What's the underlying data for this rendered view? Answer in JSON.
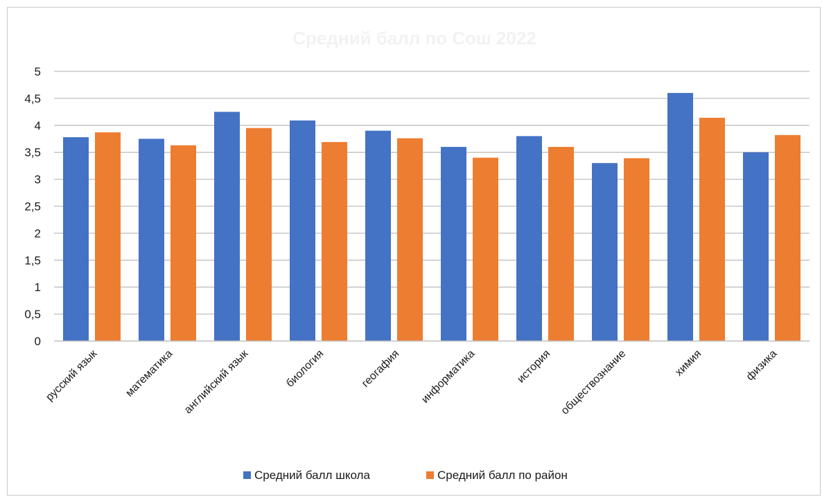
{
  "chart_data": {
    "type": "bar",
    "title": "Средний балл по Сош 2022",
    "xlabel": "",
    "ylabel": "",
    "ylim": [
      0,
      5
    ],
    "y_ticks": [
      "0",
      "0,5",
      "1",
      "1,5",
      "2",
      "2,5",
      "3",
      "3,5",
      "4",
      "4,5",
      "5"
    ],
    "categories": [
      "русский язык",
      "математика",
      "английский язык",
      "биология",
      "геогафия",
      "информатика",
      "история",
      "обществознание",
      "химия",
      "физика"
    ],
    "series": [
      {
        "name": "Средний балл  школа",
        "color": "#4472c4",
        "values": [
          3.78,
          3.75,
          4.25,
          4.09,
          3.9,
          3.6,
          3.8,
          3.3,
          4.6,
          3.5
        ]
      },
      {
        "name": "Средний балл по район",
        "color": "#ed7d31",
        "values": [
          3.87,
          3.63,
          3.95,
          3.69,
          3.76,
          3.4,
          3.6,
          3.39,
          4.14,
          3.82
        ]
      }
    ],
    "grid": true,
    "gridline_color": "#bfbfbf",
    "legend_position": "bottom"
  }
}
